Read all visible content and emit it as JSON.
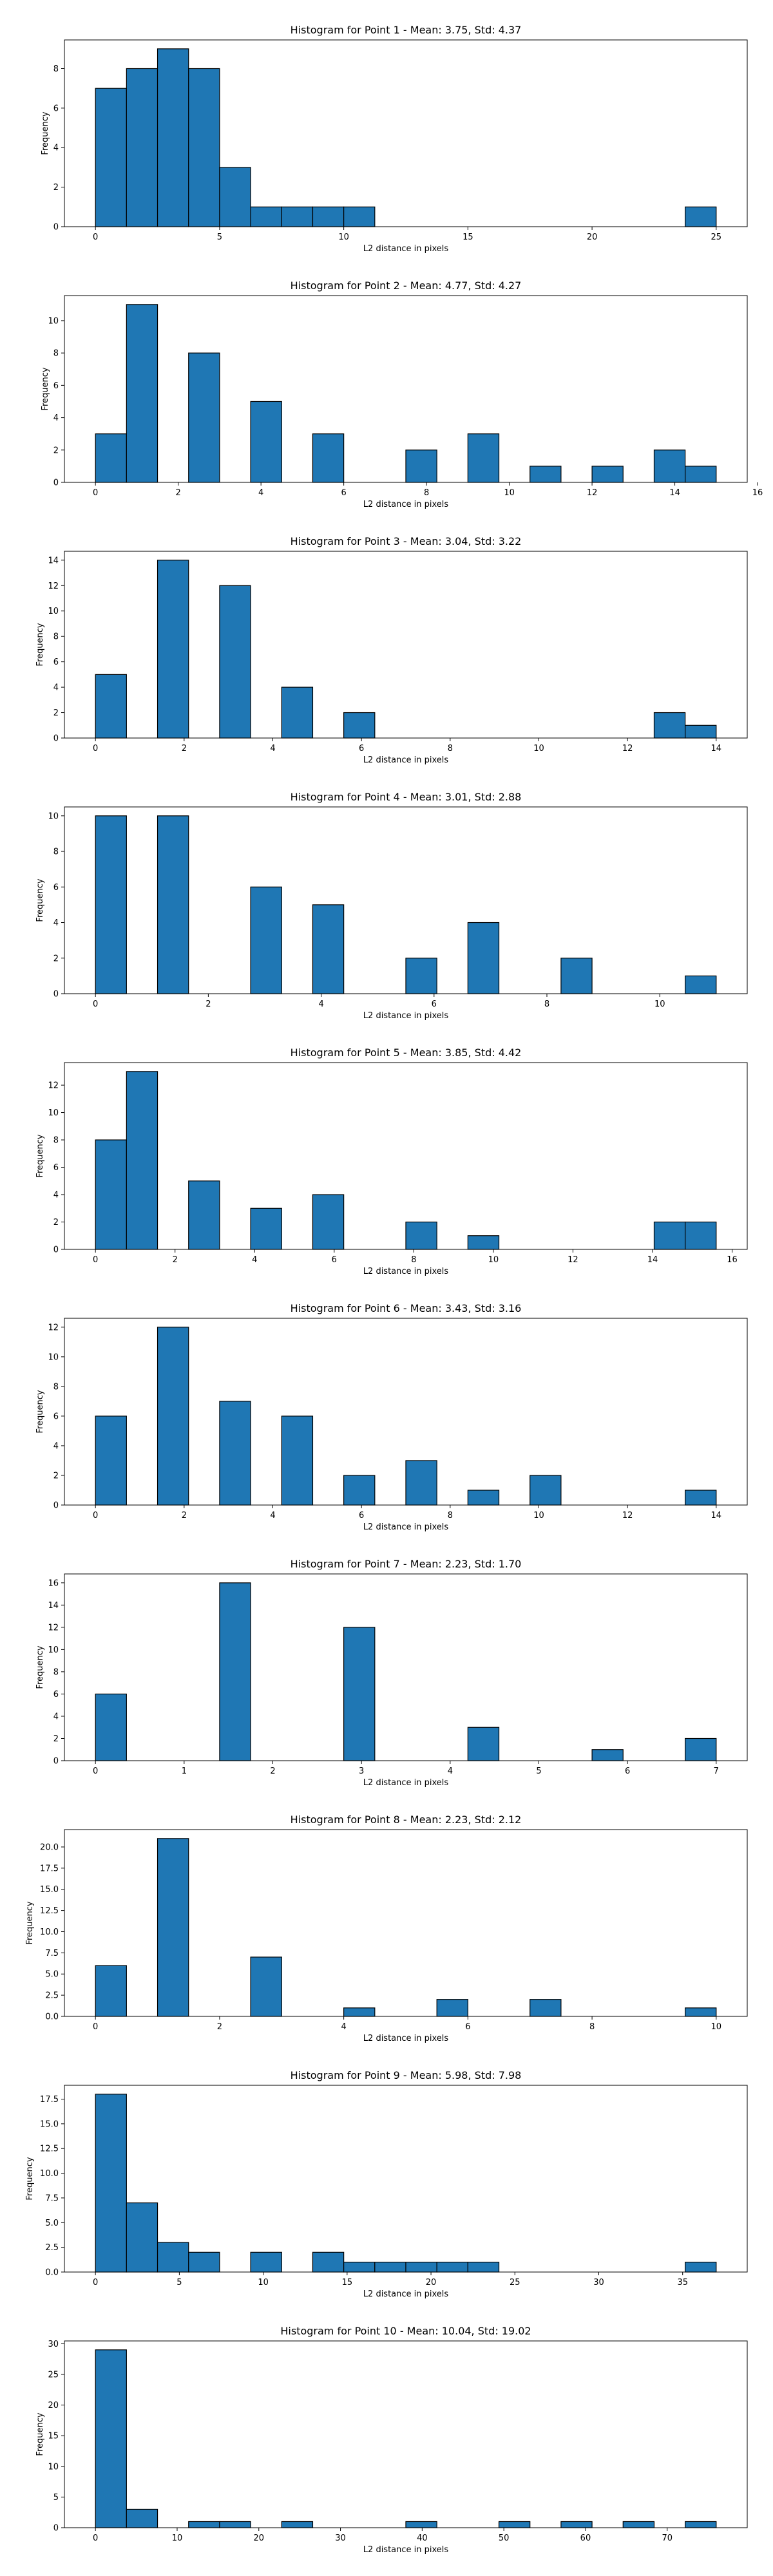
{
  "chart_data": [
    {
      "type": "bar",
      "title": "Histogram for Point 1 - Mean: 3.75, Std: 4.37",
      "xlabel": "L2 distance in pixels",
      "ylabel": "Frequency",
      "bar_color": "#1f77b4",
      "edge_color": "#000000",
      "xlim": [
        -1.25,
        26.25
      ],
      "ylim": [
        0,
        9.45
      ],
      "xticks": [
        0,
        5,
        10,
        15,
        20,
        25
      ],
      "yticks": [
        0,
        2,
        4,
        6,
        8
      ],
      "bins": [
        {
          "x0": 0,
          "x1": 1.25,
          "count": 7
        },
        {
          "x0": 1.25,
          "x1": 2.5,
          "count": 8
        },
        {
          "x0": 2.5,
          "x1": 3.75,
          "count": 9
        },
        {
          "x0": 3.75,
          "x1": 5,
          "count": 8
        },
        {
          "x0": 5,
          "x1": 6.25,
          "count": 3
        },
        {
          "x0": 6.25,
          "x1": 7.5,
          "count": 1
        },
        {
          "x0": 7.5,
          "x1": 8.75,
          "count": 1
        },
        {
          "x0": 8.75,
          "x1": 10,
          "count": 1
        },
        {
          "x0": 10,
          "x1": 11.25,
          "count": 1
        },
        {
          "x0": 23.75,
          "x1": 25,
          "count": 1
        }
      ]
    },
    {
      "type": "bar",
      "title": "Histogram for Point 2 - Mean: 4.77, Std: 4.27",
      "xlabel": "L2 distance in pixels",
      "ylabel": "Frequency",
      "bar_color": "#1f77b4",
      "edge_color": "#000000",
      "xlim": [
        -0.75,
        15.75
      ],
      "ylim": [
        0,
        11.55
      ],
      "xticks": [
        0,
        2,
        4,
        6,
        8,
        10,
        12,
        14,
        16
      ],
      "yticks": [
        0,
        2,
        4,
        6,
        8,
        10
      ],
      "bins": [
        {
          "x0": 0,
          "x1": 0.75,
          "count": 3
        },
        {
          "x0": 0.75,
          "x1": 1.5,
          "count": 11
        },
        {
          "x0": 2.25,
          "x1": 3,
          "count": 8
        },
        {
          "x0": 3.75,
          "x1": 4.5,
          "count": 5
        },
        {
          "x0": 5.25,
          "x1": 6,
          "count": 3
        },
        {
          "x0": 7.5,
          "x1": 8.25,
          "count": 2
        },
        {
          "x0": 9,
          "x1": 9.75,
          "count": 3
        },
        {
          "x0": 10.5,
          "x1": 11.25,
          "count": 1
        },
        {
          "x0": 12,
          "x1": 12.75,
          "count": 1
        },
        {
          "x0": 13.5,
          "x1": 14.25,
          "count": 2
        },
        {
          "x0": 14.25,
          "x1": 15,
          "count": 1
        }
      ]
    },
    {
      "type": "bar",
      "title": "Histogram for Point 3 - Mean: 3.04, Std: 3.22",
      "xlabel": "L2 distance in pixels",
      "ylabel": "Frequency",
      "bar_color": "#1f77b4",
      "edge_color": "#000000",
      "xlim": [
        -0.7,
        14.7
      ],
      "ylim": [
        0,
        14.7
      ],
      "xticks": [
        0,
        2,
        4,
        6,
        8,
        10,
        12,
        14
      ],
      "yticks": [
        0,
        2,
        4,
        6,
        8,
        10,
        12,
        14
      ],
      "bins": [
        {
          "x0": 0,
          "x1": 0.7,
          "count": 5
        },
        {
          "x0": 1.4,
          "x1": 2.1,
          "count": 14
        },
        {
          "x0": 2.8,
          "x1": 3.5,
          "count": 12
        },
        {
          "x0": 4.2,
          "x1": 4.9,
          "count": 4
        },
        {
          "x0": 5.6,
          "x1": 6.3,
          "count": 2
        },
        {
          "x0": 12.6,
          "x1": 13.3,
          "count": 2
        },
        {
          "x0": 13.3,
          "x1": 14,
          "count": 1
        }
      ]
    },
    {
      "type": "bar",
      "title": "Histogram for Point 4 - Mean: 3.01, Std: 2.88",
      "xlabel": "L2 distance in pixels",
      "ylabel": "Frequency",
      "bar_color": "#1f77b4",
      "edge_color": "#000000",
      "xlim": [
        -0.55,
        11.55
      ],
      "ylim": [
        0,
        10.5
      ],
      "xticks": [
        0,
        2,
        4,
        6,
        8,
        10
      ],
      "yticks": [
        0,
        2,
        4,
        6,
        8,
        10
      ],
      "bins": [
        {
          "x0": 0,
          "x1": 0.55,
          "count": 10
        },
        {
          "x0": 1.1,
          "x1": 1.65,
          "count": 10
        },
        {
          "x0": 2.75,
          "x1": 3.3,
          "count": 6
        },
        {
          "x0": 3.85,
          "x1": 4.4,
          "count": 5
        },
        {
          "x0": 5.5,
          "x1": 6.05,
          "count": 2
        },
        {
          "x0": 6.6,
          "x1": 7.15,
          "count": 4
        },
        {
          "x0": 8.25,
          "x1": 8.8,
          "count": 2
        },
        {
          "x0": 10.45,
          "x1": 11,
          "count": 1
        }
      ]
    },
    {
      "type": "bar",
      "title": "Histogram for Point 5 - Mean: 3.85, Std: 4.42",
      "xlabel": "L2 distance in pixels",
      "ylabel": "Frequency",
      "bar_color": "#1f77b4",
      "edge_color": "#000000",
      "xlim": [
        -0.78,
        16.38
      ],
      "ylim": [
        0,
        13.65
      ],
      "xticks": [
        0,
        2,
        4,
        6,
        8,
        10,
        12,
        14,
        16
      ],
      "yticks": [
        0,
        2,
        4,
        6,
        8,
        10,
        12
      ],
      "bins": [
        {
          "x0": 0,
          "x1": 0.78,
          "count": 8
        },
        {
          "x0": 0.78,
          "x1": 1.56,
          "count": 13
        },
        {
          "x0": 2.34,
          "x1": 3.12,
          "count": 5
        },
        {
          "x0": 3.9,
          "x1": 4.68,
          "count": 3
        },
        {
          "x0": 5.46,
          "x1": 6.24,
          "count": 4
        },
        {
          "x0": 7.8,
          "x1": 8.58,
          "count": 2
        },
        {
          "x0": 9.36,
          "x1": 10.14,
          "count": 1
        },
        {
          "x0": 14.04,
          "x1": 14.82,
          "count": 2
        },
        {
          "x0": 14.82,
          "x1": 15.6,
          "count": 2
        }
      ]
    },
    {
      "type": "bar",
      "title": "Histogram for Point 6 - Mean: 3.43, Std: 3.16",
      "xlabel": "L2 distance in pixels",
      "ylabel": "Frequency",
      "bar_color": "#1f77b4",
      "edge_color": "#000000",
      "xlim": [
        -0.7,
        14.7
      ],
      "ylim": [
        0,
        12.6
      ],
      "xticks": [
        0,
        2,
        4,
        6,
        8,
        10,
        12,
        14
      ],
      "yticks": [
        0,
        2,
        4,
        6,
        8,
        10,
        12
      ],
      "bins": [
        {
          "x0": 0,
          "x1": 0.7,
          "count": 6
        },
        {
          "x0": 1.4,
          "x1": 2.1,
          "count": 12
        },
        {
          "x0": 2.8,
          "x1": 3.5,
          "count": 7
        },
        {
          "x0": 4.2,
          "x1": 4.9,
          "count": 6
        },
        {
          "x0": 5.6,
          "x1": 6.3,
          "count": 2
        },
        {
          "x0": 7,
          "x1": 7.7,
          "count": 3
        },
        {
          "x0": 8.4,
          "x1": 9.1,
          "count": 1
        },
        {
          "x0": 9.8,
          "x1": 10.5,
          "count": 2
        },
        {
          "x0": 13.3,
          "x1": 14,
          "count": 1
        }
      ]
    },
    {
      "type": "bar",
      "title": "Histogram for Point 7 - Mean: 2.23, Std: 1.70",
      "xlabel": "L2 distance in pixels",
      "ylabel": "Frequency",
      "bar_color": "#1f77b4",
      "edge_color": "#000000",
      "xlim": [
        -0.35,
        7.35
      ],
      "ylim": [
        0,
        16.8
      ],
      "xticks": [
        0,
        1,
        2,
        3,
        4,
        5,
        6,
        7
      ],
      "yticks": [
        0,
        2,
        4,
        6,
        8,
        10,
        12,
        14,
        16
      ],
      "bins": [
        {
          "x0": 0,
          "x1": 0.35,
          "count": 6
        },
        {
          "x0": 1.4,
          "x1": 1.75,
          "count": 16
        },
        {
          "x0": 2.8,
          "x1": 3.15,
          "count": 12
        },
        {
          "x0": 4.2,
          "x1": 4.55,
          "count": 3
        },
        {
          "x0": 5.6,
          "x1": 5.95,
          "count": 1
        },
        {
          "x0": 6.65,
          "x1": 7,
          "count": 2
        }
      ]
    },
    {
      "type": "bar",
      "title": "Histogram for Point 8 - Mean: 2.23, Std: 2.12",
      "xlabel": "L2 distance in pixels",
      "ylabel": "Frequency",
      "bar_color": "#1f77b4",
      "edge_color": "#000000",
      "xlim": [
        -0.5,
        10.5
      ],
      "ylim": [
        0,
        22.05
      ],
      "xticks": [
        0,
        2,
        4,
        6,
        8,
        10
      ],
      "yticks": [
        "0.0",
        "2.5",
        "5.0",
        "7.5",
        "10.0",
        "12.5",
        "15.0",
        "17.5",
        "20.0"
      ],
      "bins": [
        {
          "x0": 0,
          "x1": 0.5,
          "count": 6
        },
        {
          "x0": 1,
          "x1": 1.5,
          "count": 21
        },
        {
          "x0": 2.5,
          "x1": 3,
          "count": 7
        },
        {
          "x0": 4,
          "x1": 4.5,
          "count": 1
        },
        {
          "x0": 5.5,
          "x1": 6,
          "count": 2
        },
        {
          "x0": 7,
          "x1": 7.5,
          "count": 2
        },
        {
          "x0": 9.5,
          "x1": 10,
          "count": 1
        }
      ]
    },
    {
      "type": "bar",
      "title": "Histogram for Point 9 - Mean: 5.98, Std: 7.98",
      "xlabel": "L2 distance in pixels",
      "ylabel": "Frequency",
      "bar_color": "#1f77b4",
      "edge_color": "#000000",
      "xlim": [
        -1.85,
        38.85
      ],
      "ylim": [
        0,
        18.9
      ],
      "xticks": [
        0,
        5,
        10,
        15,
        20,
        25,
        30,
        35
      ],
      "yticks": [
        "0.0",
        "2.5",
        "5.0",
        "7.5",
        "10.0",
        "12.5",
        "15.0",
        "17.5"
      ],
      "bins": [
        {
          "x0": 0,
          "x1": 1.85,
          "count": 18
        },
        {
          "x0": 1.85,
          "x1": 3.7,
          "count": 7
        },
        {
          "x0": 3.7,
          "x1": 5.55,
          "count": 3
        },
        {
          "x0": 5.55,
          "x1": 7.4,
          "count": 2
        },
        {
          "x0": 9.25,
          "x1": 11.1,
          "count": 2
        },
        {
          "x0": 12.95,
          "x1": 14.8,
          "count": 2
        },
        {
          "x0": 14.8,
          "x1": 16.65,
          "count": 1
        },
        {
          "x0": 16.65,
          "x1": 18.5,
          "count": 1
        },
        {
          "x0": 18.5,
          "x1": 20.35,
          "count": 1
        },
        {
          "x0": 20.35,
          "x1": 22.2,
          "count": 1
        },
        {
          "x0": 22.2,
          "x1": 24.05,
          "count": 1
        },
        {
          "x0": 35.15,
          "x1": 37,
          "count": 1
        }
      ]
    },
    {
      "type": "bar",
      "title": "Histogram for Point 10 - Mean: 10.04, Std: 19.02",
      "xlabel": "L2 distance in pixels",
      "ylabel": "Frequency",
      "bar_color": "#1f77b4",
      "edge_color": "#000000",
      "xlim": [
        -3.8,
        79.8
      ],
      "ylim": [
        0,
        30.45
      ],
      "xticks": [
        0,
        10,
        20,
        30,
        40,
        50,
        60,
        70
      ],
      "yticks": [
        0,
        5,
        10,
        15,
        20,
        25,
        30
      ],
      "bins": [
        {
          "x0": 0,
          "x1": 3.8,
          "count": 29
        },
        {
          "x0": 3.8,
          "x1": 7.6,
          "count": 3
        },
        {
          "x0": 11.4,
          "x1": 15.2,
          "count": 1
        },
        {
          "x0": 15.2,
          "x1": 19,
          "count": 1
        },
        {
          "x0": 22.8,
          "x1": 26.6,
          "count": 1
        },
        {
          "x0": 38,
          "x1": 41.8,
          "count": 1
        },
        {
          "x0": 49.4,
          "x1": 53.2,
          "count": 1
        },
        {
          "x0": 57,
          "x1": 60.8,
          "count": 1
        },
        {
          "x0": 64.6,
          "x1": 68.4,
          "count": 1
        },
        {
          "x0": 72.2,
          "x1": 76,
          "count": 1
        }
      ]
    }
  ]
}
